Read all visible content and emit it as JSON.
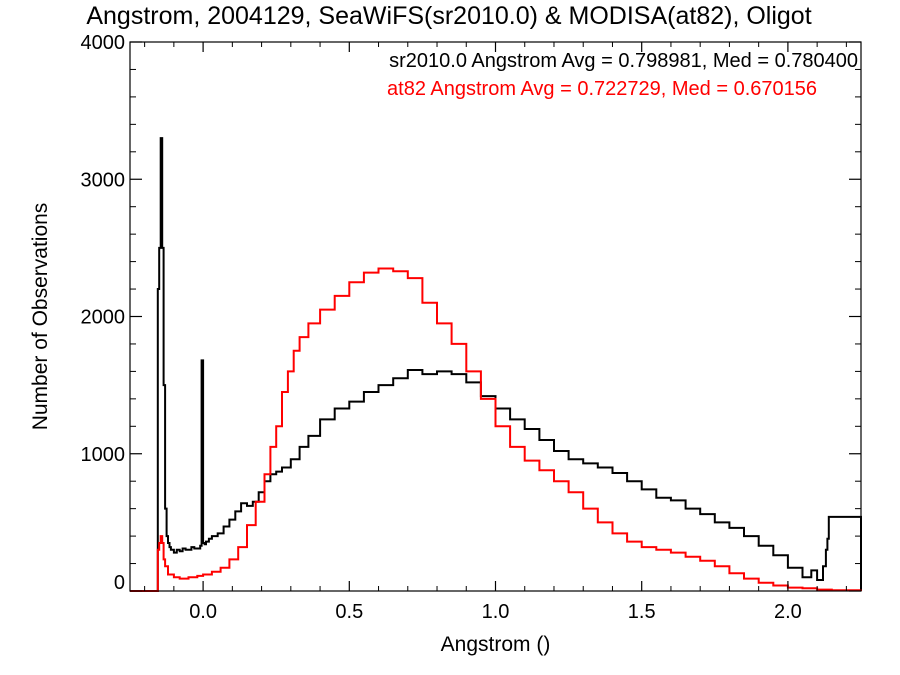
{
  "chart_data": {
    "type": "line",
    "title": "Angstrom, 2004129, SeaWiFS(sr2010.0) & MODISA(at82), Oligot",
    "xlabel": "Angstrom ()",
    "ylabel": "Number of Observations",
    "xlim": [
      -0.25,
      2.25
    ],
    "ylim": [
      0,
      4000
    ],
    "x_ticks": [
      0.0,
      0.5,
      1.0,
      1.5,
      2.0
    ],
    "x_tick_labels": [
      "0.0",
      "0.5",
      "1.0",
      "1.5",
      "2.0"
    ],
    "y_ticks": [
      0,
      1000,
      2000,
      3000,
      4000
    ],
    "y_tick_labels": [
      "0",
      "1000",
      "2000",
      "3000",
      "4000"
    ],
    "grid": false,
    "legend_position": "top-right",
    "annotations": [
      {
        "text": "sr2010.0 Angstrom Avg = 0.798981, Med = 0.780400",
        "color": "#000000"
      },
      {
        "text": "at82 Angstrom Avg = 0.722729, Med = 0.670156",
        "color": "#ff0000"
      }
    ],
    "series": [
      {
        "color": "#000000",
        "style": "step",
        "x": [
          -0.25,
          -0.16,
          -0.155,
          -0.15,
          -0.145,
          -0.14,
          -0.135,
          -0.13,
          -0.125,
          -0.12,
          -0.115,
          -0.11,
          -0.1,
          -0.09,
          -0.08,
          -0.07,
          -0.06,
          -0.05,
          -0.04,
          -0.03,
          -0.02,
          -0.01,
          -0.005,
          0.0,
          0.005,
          0.01,
          0.02,
          0.03,
          0.05,
          0.07,
          0.09,
          0.11,
          0.13,
          0.15,
          0.17,
          0.19,
          0.21,
          0.23,
          0.25,
          0.27,
          0.3,
          0.33,
          0.36,
          0.4,
          0.45,
          0.5,
          0.55,
          0.6,
          0.65,
          0.7,
          0.75,
          0.8,
          0.85,
          0.9,
          0.95,
          1.0,
          1.05,
          1.1,
          1.15,
          1.2,
          1.25,
          1.3,
          1.35,
          1.4,
          1.45,
          1.5,
          1.55,
          1.6,
          1.65,
          1.7,
          1.75,
          1.8,
          1.85,
          1.9,
          1.95,
          2.0,
          2.05,
          2.08,
          2.1,
          2.12,
          2.13,
          2.135,
          2.14,
          2.25
        ],
        "y": [
          0,
          0,
          2200,
          2500,
          3300,
          2500,
          1500,
          600,
          400,
          350,
          320,
          300,
          280,
          300,
          290,
          310,
          300,
          300,
          320,
          310,
          310,
          330,
          1680,
          350,
          340,
          360,
          380,
          400,
          420,
          470,
          520,
          580,
          640,
          620,
          650,
          720,
          800,
          850,
          870,
          900,
          960,
          1050,
          1130,
          1250,
          1330,
          1380,
          1450,
          1500,
          1550,
          1610,
          1580,
          1600,
          1580,
          1520,
          1420,
          1330,
          1250,
          1180,
          1100,
          1020,
          960,
          930,
          900,
          860,
          800,
          740,
          680,
          660,
          600,
          560,
          500,
          460,
          400,
          330,
          260,
          170,
          100,
          150,
          80,
          180,
          300,
          380,
          540,
          0
        ]
      },
      {
        "color": "#ff0000",
        "style": "step",
        "x": [
          -0.25,
          -0.16,
          -0.155,
          -0.15,
          -0.145,
          -0.14,
          -0.135,
          -0.13,
          -0.12,
          -0.1,
          -0.08,
          -0.05,
          -0.02,
          0.0,
          0.03,
          0.06,
          0.09,
          0.12,
          0.15,
          0.18,
          0.21,
          0.23,
          0.25,
          0.27,
          0.29,
          0.31,
          0.33,
          0.36,
          0.4,
          0.45,
          0.5,
          0.55,
          0.6,
          0.65,
          0.7,
          0.75,
          0.8,
          0.85,
          0.9,
          0.95,
          1.0,
          1.05,
          1.1,
          1.15,
          1.2,
          1.25,
          1.3,
          1.35,
          1.4,
          1.45,
          1.5,
          1.55,
          1.6,
          1.65,
          1.7,
          1.75,
          1.8,
          1.85,
          1.9,
          1.95,
          2.0,
          2.05,
          2.1,
          2.15,
          2.25
        ],
        "y": [
          0,
          0,
          300,
          350,
          400,
          350,
          230,
          180,
          120,
          100,
          90,
          100,
          110,
          120,
          140,
          170,
          230,
          320,
          480,
          650,
          850,
          1050,
          1200,
          1450,
          1600,
          1750,
          1850,
          1950,
          2050,
          2150,
          2250,
          2320,
          2350,
          2330,
          2280,
          2100,
          1950,
          1800,
          1600,
          1400,
          1200,
          1050,
          950,
          880,
          800,
          720,
          600,
          500,
          420,
          360,
          320,
          300,
          280,
          250,
          220,
          180,
          130,
          90,
          60,
          40,
          25,
          20,
          10,
          5,
          0
        ]
      }
    ]
  }
}
